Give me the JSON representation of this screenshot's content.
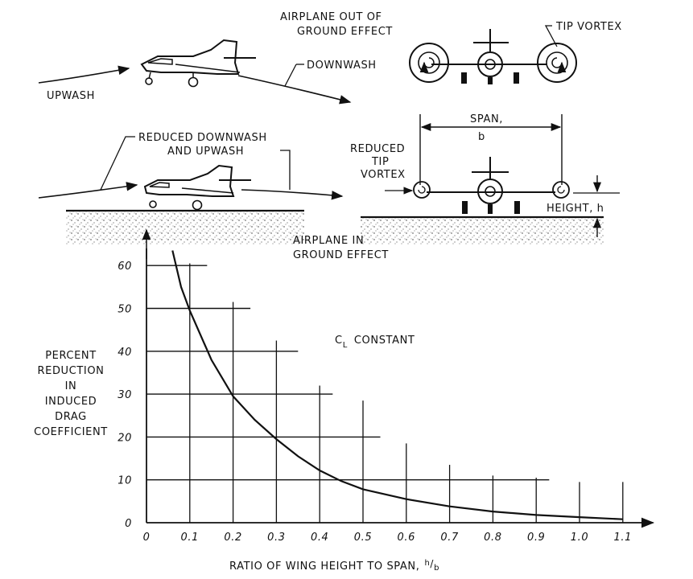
{
  "top_left": {
    "upwash": "UPWASH",
    "downwash": "DOWNWASH",
    "reduced_line1": "REDUCED DOWNWASH",
    "reduced_line2": "AND UPWASH"
  },
  "top_right": {
    "out_line1": "AIRPLANE OUT OF",
    "out_line2": "GROUND EFFECT",
    "tip_vortex": "TIP VORTEX",
    "span_line1": "SPAN,",
    "span_line2": "b",
    "reduced_tip_line1": "REDUCED",
    "reduced_tip_line2": "TIP",
    "reduced_tip_line3": "VORTEX",
    "height": "HEIGHT, h",
    "in_line1": "AIRPLANE IN",
    "in_line2": "GROUND EFFECT"
  },
  "chart_data": {
    "type": "line",
    "annotation_main": "C",
    "annotation_sub": "L",
    "annotation_rest": "CONSTANT",
    "ylabel_lines": [
      "PERCENT",
      "REDUCTION",
      "IN",
      "INDUCED",
      "DRAG",
      "COEFFICIENT"
    ],
    "xlabel": "RATIO OF WING HEIGHT TO SPAN,",
    "xlabel_frac_num": "h",
    "xlabel_frac_den": "b",
    "xticks": [
      "0",
      "0.1",
      "0.2",
      "0.3",
      "0.4",
      "0.5",
      "0.6",
      "0.7",
      "0.8",
      "0.9",
      "1.0",
      "1.1"
    ],
    "yticks": [
      "0",
      "10",
      "20",
      "30",
      "40",
      "50",
      "60"
    ],
    "xlim": [
      0,
      1.1
    ],
    "ylim": [
      0,
      60
    ],
    "series": [
      {
        "x": [
          0.06,
          0.08,
          0.1,
          0.15,
          0.2,
          0.25,
          0.3,
          0.35,
          0.4,
          0.45,
          0.5,
          0.6,
          0.7,
          0.8,
          0.9,
          1.0,
          1.1
        ],
        "values": [
          63.5,
          55,
          49.5,
          38,
          29.5,
          24,
          19.5,
          15.5,
          12.2,
          9.7,
          7.8,
          5.5,
          3.8,
          2.6,
          1.8,
          1.3,
          0.8
        ]
      }
    ]
  }
}
